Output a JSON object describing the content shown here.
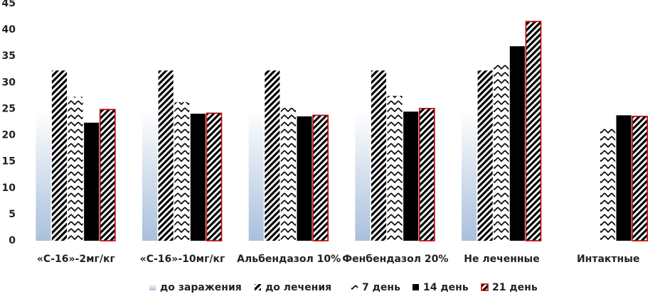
{
  "chart_data": {
    "type": "bar",
    "categories": [
      "«С-16»-2мг/кг",
      "«С-16»-10мг/кг",
      "Альбендазол 10%",
      "Фенбендазол 20%",
      "Не леченные",
      "Интактные"
    ],
    "series": [
      {
        "name": "до заражения",
        "color": "#a9c0dc",
        "pattern": "gradient",
        "values": [
          24.7,
          24.7,
          24.7,
          24.7,
          24.7,
          null
        ]
      },
      {
        "name": "до лечения",
        "color": "#000000",
        "pattern": "diagonal",
        "values": [
          32.3,
          32.3,
          32.3,
          32.3,
          32.3,
          null
        ]
      },
      {
        "name": "7 день",
        "color": "#000000",
        "pattern": "zigzag",
        "values": [
          27.3,
          26.3,
          25.2,
          27.5,
          33.8,
          21.3
        ]
      },
      {
        "name": "14 день",
        "color": "#000000",
        "pattern": "solid",
        "values": [
          22.4,
          24.1,
          23.6,
          24.5,
          36.9,
          23.8
        ]
      },
      {
        "name": "21 день",
        "color": "#c00000",
        "pattern": "diagonal-outlined",
        "values": [
          24.9,
          24.2,
          23.8,
          25.1,
          41.6,
          23.6
        ]
      }
    ],
    "ylim": [
      0,
      45
    ],
    "yticks": [
      0,
      5,
      10,
      15,
      20,
      25,
      30,
      35,
      40,
      45
    ],
    "grid": false
  }
}
